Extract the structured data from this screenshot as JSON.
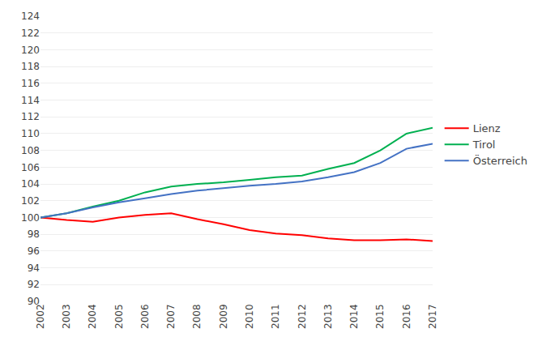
{
  "chart_data": {
    "type": "line",
    "x": [
      2002,
      2003,
      2004,
      2005,
      2006,
      2007,
      2008,
      2009,
      2010,
      2011,
      2012,
      2013,
      2014,
      2015,
      2016,
      2017
    ],
    "series": [
      {
        "name": "Lienz",
        "color": "#ff0000",
        "values": [
          100.0,
          99.7,
          99.5,
          100.0,
          100.3,
          100.5,
          99.8,
          99.2,
          98.5,
          98.1,
          97.9,
          97.5,
          97.3,
          97.3,
          97.4,
          97.2
        ]
      },
      {
        "name": "Tirol",
        "color": "#00b050",
        "values": [
          100.0,
          100.5,
          101.3,
          102.0,
          103.0,
          103.7,
          104.0,
          104.2,
          104.5,
          104.8,
          105.0,
          105.8,
          106.5,
          108.0,
          110.0,
          110.7
        ]
      },
      {
        "name": "Österreich",
        "color": "#4472c4",
        "values": [
          100.0,
          100.5,
          101.2,
          101.8,
          102.3,
          102.8,
          103.2,
          103.5,
          103.8,
          104.0,
          104.3,
          104.8,
          105.4,
          106.5,
          108.2,
          108.8
        ]
      }
    ],
    "xlim": [
      2002,
      2017
    ],
    "xticks": [
      2002,
      2003,
      2004,
      2005,
      2006,
      2007,
      2008,
      2009,
      2010,
      2011,
      2012,
      2013,
      2014,
      2015,
      2016,
      2017
    ],
    "ylim": [
      90,
      124
    ],
    "yticks": [
      90,
      92,
      94,
      96,
      98,
      100,
      102,
      104,
      106,
      108,
      110,
      112,
      114,
      116,
      118,
      120,
      122,
      124
    ],
    "grid": true,
    "legend": "right"
  }
}
